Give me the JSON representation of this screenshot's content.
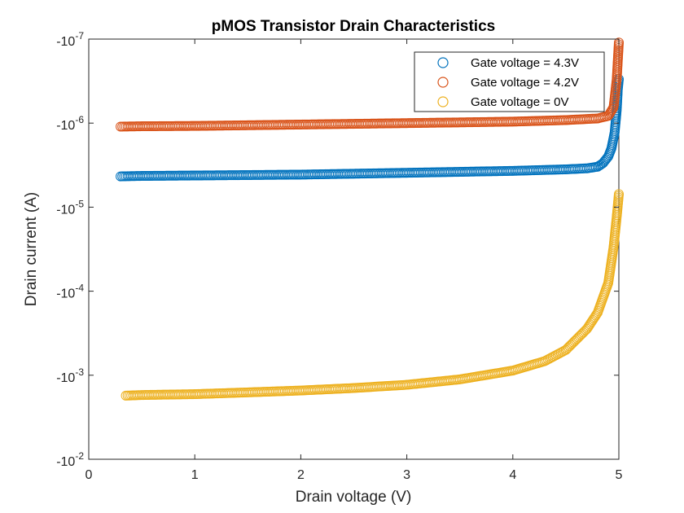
{
  "chart_data": {
    "type": "scatter",
    "title": "pMOS Transistor Drain Characteristics",
    "xlabel": "Drain voltage (V)",
    "ylabel": "Drain current (A)",
    "xlim": [
      0,
      5
    ],
    "ylim": [
      -0.01,
      -1e-07
    ],
    "y_scale": "log (negative values)",
    "marker": "open circle",
    "grid": false,
    "legend_position": "top-right",
    "x_ticks": [
      0,
      1,
      2,
      3,
      4,
      5
    ],
    "x_tick_labels": [
      "0",
      "1",
      "2",
      "3",
      "4",
      "5"
    ],
    "y_ticks": [
      -1e-07,
      -1e-06,
      -1e-05,
      -0.0001,
      -0.001,
      -0.01
    ],
    "y_tick_labels": [
      {
        "base": "-10",
        "exp": "-7"
      },
      {
        "base": "-10",
        "exp": "-6"
      },
      {
        "base": "-10",
        "exp": "-5"
      },
      {
        "base": "-10",
        "exp": "-4"
      },
      {
        "base": "-10",
        "exp": "-3"
      },
      {
        "base": "-10",
        "exp": "-2"
      }
    ],
    "series": [
      {
        "name": "Gate voltage = 4.3V",
        "color": "#0072BD",
        "x": [
          0.3,
          0.5,
          1.0,
          1.5,
          2.0,
          2.5,
          3.0,
          3.5,
          4.0,
          4.5,
          4.7,
          4.8,
          4.85,
          4.9,
          4.93,
          4.96,
          4.98,
          4.99,
          5.0
        ],
        "y_abs": [
          4.3e-06,
          4.25e-06,
          4.2e-06,
          4.15e-06,
          4.1e-06,
          4e-06,
          3.9e-06,
          3.8e-06,
          3.7e-06,
          3.55e-06,
          3.45e-06,
          3.3e-06,
          3e-06,
          2.5e-06,
          2e-06,
          1.3e-06,
          7e-07,
          4e-07,
          3e-07
        ]
      },
      {
        "name": "Gate voltage = 4.2V",
        "color": "#D95319",
        "x": [
          0.3,
          0.5,
          1.0,
          1.5,
          2.0,
          2.5,
          3.0,
          3.5,
          4.0,
          4.5,
          4.8,
          4.9,
          4.95,
          4.98,
          5.0
        ],
        "y_abs": [
          1.1e-06,
          1.09e-06,
          1.08e-06,
          1.06e-06,
          1.04e-06,
          1.02e-06,
          1e-06,
          9.8e-07,
          9.6e-07,
          9.2e-07,
          8.8e-07,
          8.2e-07,
          6.5e-07,
          3e-07,
          1.1e-07
        ]
      },
      {
        "name": "Gate voltage = 0V",
        "color": "#EDB120",
        "x": [
          0.35,
          0.5,
          1.0,
          1.5,
          2.0,
          2.5,
          3.0,
          3.5,
          4.0,
          4.3,
          4.5,
          4.7,
          4.8,
          4.9,
          4.95,
          4.98,
          5.0
        ],
        "y_abs": [
          0.00175,
          0.00172,
          0.00168,
          0.0016,
          0.00152,
          0.00142,
          0.0013,
          0.00112,
          0.00088,
          0.00068,
          0.0005,
          0.00028,
          0.00018,
          8e-05,
          3e-05,
          1.3e-05,
          7e-06
        ]
      }
    ]
  }
}
